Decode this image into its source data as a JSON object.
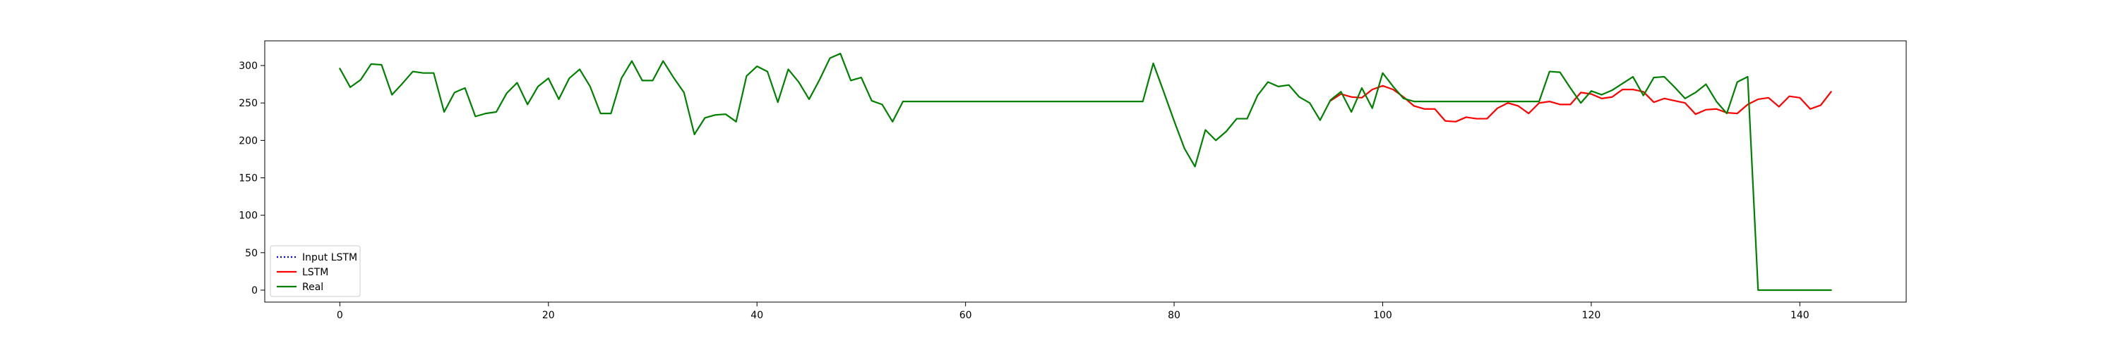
{
  "chart_data": {
    "type": "line",
    "title": "",
    "xlabel": "",
    "ylabel": "",
    "xlim": [
      -7.2,
      150.2
    ],
    "ylim": [
      -16,
      333
    ],
    "xticks": [
      0,
      20,
      40,
      60,
      80,
      100,
      120,
      140
    ],
    "yticks": [
      0,
      50,
      100,
      150,
      200,
      250,
      300
    ],
    "grid": false,
    "legend_position": "lower-left",
    "series": [
      {
        "name": "Input LSTM",
        "color": "#0000ff",
        "style": "dotted",
        "x": [],
        "y": []
      },
      {
        "name": "LSTM",
        "color": "#ff0000",
        "style": "solid",
        "x": [
          95,
          96,
          97,
          98,
          99,
          100,
          101,
          102,
          103,
          104,
          105,
          106,
          107,
          108,
          109,
          110,
          111,
          112,
          113,
          114,
          115,
          116,
          117,
          118,
          119,
          120,
          121,
          122,
          123,
          124,
          125,
          126,
          127,
          128,
          129,
          130,
          131,
          132,
          133,
          134,
          135,
          136,
          137,
          138,
          139,
          140,
          141,
          142,
          143
        ],
        "y": [
          253,
          262,
          258,
          257,
          268,
          273,
          268,
          258,
          246,
          242,
          242,
          226,
          225,
          231,
          229,
          229,
          243,
          250,
          246,
          236,
          250,
          252,
          248,
          248,
          264,
          262,
          256,
          258,
          268,
          268,
          265,
          251,
          256,
          253,
          250,
          235,
          241,
          242,
          237,
          236,
          248,
          255,
          257,
          245,
          259,
          257,
          242,
          247,
          265
        ]
      },
      {
        "name": "Real",
        "color": "#008000",
        "style": "solid",
        "x": [
          0,
          1,
          2,
          3,
          4,
          5,
          6,
          7,
          8,
          9,
          10,
          11,
          12,
          13,
          14,
          15,
          16,
          17,
          18,
          19,
          20,
          21,
          22,
          23,
          24,
          25,
          26,
          27,
          28,
          29,
          30,
          31,
          32,
          33,
          34,
          35,
          36,
          37,
          38,
          39,
          40,
          41,
          42,
          43,
          44,
          45,
          46,
          47,
          48,
          49,
          50,
          51,
          52,
          53,
          54,
          55,
          56,
          57,
          58,
          59,
          60,
          61,
          62,
          63,
          64,
          65,
          66,
          67,
          68,
          69,
          70,
          71,
          72,
          73,
          74,
          75,
          76,
          77,
          78,
          79,
          80,
          81,
          82,
          83,
          84,
          85,
          86,
          87,
          88,
          89,
          90,
          91,
          92,
          93,
          94,
          95,
          96,
          97,
          98,
          99,
          100,
          101,
          102,
          103,
          104,
          105,
          106,
          107,
          108,
          109,
          110,
          111,
          112,
          113,
          114,
          115,
          116,
          117,
          118,
          119,
          120,
          121,
          122,
          123,
          124,
          125,
          126,
          127,
          128,
          129,
          130,
          131,
          132,
          133,
          134,
          135,
          136,
          137,
          138,
          139,
          140,
          141,
          142,
          143
        ],
        "y": [
          296,
          271,
          281,
          302,
          301,
          261,
          276,
          292,
          290,
          290,
          238,
          264,
          270,
          232,
          236,
          238,
          263,
          277,
          248,
          272,
          283,
          255,
          283,
          295,
          272,
          236,
          236,
          283,
          306,
          280,
          280,
          306,
          284,
          264,
          208,
          230,
          234,
          235,
          225,
          286,
          299,
          292,
          251,
          295,
          278,
          255,
          281,
          310,
          316,
          280,
          284,
          253,
          248,
          225,
          252,
          252,
          252,
          252,
          252,
          252,
          252,
          252,
          252,
          252,
          252,
          252,
          252,
          252,
          252,
          252,
          252,
          252,
          252,
          252,
          252,
          252,
          252,
          252,
          303,
          265,
          226,
          189,
          165,
          214,
          200,
          212,
          229,
          229,
          260,
          278,
          272,
          274,
          258,
          250,
          227,
          254,
          265,
          238,
          270,
          243,
          290,
          272,
          256,
          252,
          252,
          252,
          252,
          252,
          252,
          252,
          252,
          252,
          252,
          252,
          252,
          252,
          292,
          291,
          270,
          250,
          266,
          261,
          267,
          276,
          285,
          260,
          284,
          285,
          271,
          256,
          264,
          275,
          252,
          236,
          278,
          285,
          0,
          0,
          0,
          0,
          0,
          0,
          0,
          0
        ]
      }
    ]
  }
}
